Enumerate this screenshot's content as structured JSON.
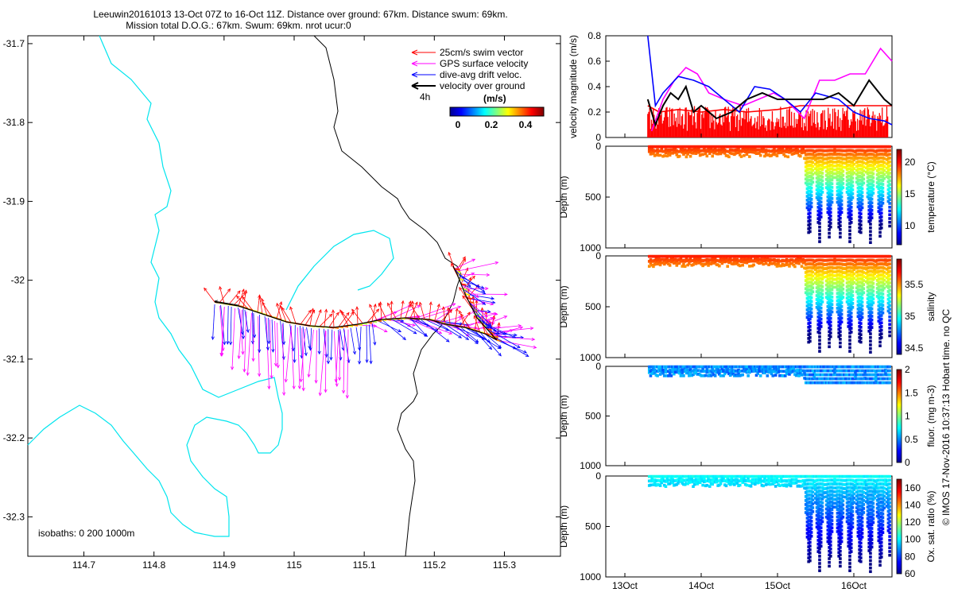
{
  "header": {
    "title_line1": "Leeuwin20161013 13-Oct 07Z to 16-Oct 11Z. Distance over ground: 67km. Distance swum: 69km.",
    "title_line2": "Mission total D.O.G.: 67km. Swum: 69km. nrot ucur:0"
  },
  "credit": "© IMOS 17-Nov-2016 10:37:13 Hobart time. no QC",
  "map": {
    "x_ticks": [
      "114.7",
      "114.8",
      "114.9",
      "115",
      "115.1",
      "115.2",
      "115.3"
    ],
    "y_ticks": [
      "-31.7",
      "-31.8",
      "-31.9",
      "-32",
      "-32.1",
      "-32.2",
      "-32.3"
    ],
    "xlim": [
      114.62,
      115.38
    ],
    "ylim": [
      -32.35,
      -31.69
    ],
    "legend": [
      {
        "label": "25cm/s swim vector",
        "color": "#ff0000"
      },
      {
        "label": "GPS surface velocity",
        "color": "#ff00ff"
      },
      {
        "label": "dive-avg drift veloc.",
        "color": "#0000ff"
      },
      {
        "label": "velocity over ground",
        "color": "#000000"
      }
    ],
    "scale_label": "4h",
    "colorbar_title": "(m/s)",
    "colorbar_ticks": [
      "0",
      "0.2",
      "0.4"
    ],
    "isobath_label": "isobaths: 0   200  1000m",
    "colors": {
      "isobath_200": "#00e5ee",
      "isobath_1000": "#000000"
    }
  },
  "chart_data": [
    {
      "type": "line",
      "ylabel": "velocity magnitude (m/s)",
      "ylim": [
        0,
        0.8
      ],
      "y_ticks": [
        "0",
        "0.2",
        "0.4",
        "0.6",
        "0.8"
      ],
      "xlim": [
        12.75,
        16.5
      ],
      "series": [
        {
          "color": "#ff0000",
          "x": [
            13.3,
            13.45,
            13.7,
            14.0,
            14.3,
            14.6,
            15.0,
            15.3,
            15.6,
            16.0,
            16.3,
            16.5
          ],
          "y": [
            0.25,
            0.2,
            0.22,
            0.2,
            0.22,
            0.2,
            0.22,
            0.25,
            0.25,
            0.25,
            0.25,
            0.25
          ]
        },
        {
          "color": "#ff00ff",
          "x": [
            13.35,
            13.5,
            13.65,
            13.8,
            13.95,
            14.1,
            14.3,
            14.55,
            14.75,
            14.95,
            15.1,
            15.35,
            15.55,
            15.75,
            15.95,
            16.15,
            16.35,
            16.5
          ],
          "y": [
            0.05,
            0.3,
            0.45,
            0.55,
            0.5,
            0.35,
            0.3,
            0.25,
            0.3,
            0.35,
            0.3,
            0.15,
            0.45,
            0.45,
            0.5,
            0.5,
            0.7,
            0.6
          ]
        },
        {
          "color": "#0000ff",
          "x": [
            13.3,
            13.4,
            13.5,
            13.7,
            13.9,
            14.1,
            14.3,
            14.5,
            14.7,
            14.9,
            15.1,
            15.3,
            15.5,
            15.8,
            16.0,
            16.2,
            16.4,
            16.5
          ],
          "y": [
            0.8,
            0.25,
            0.35,
            0.48,
            0.45,
            0.4,
            0.3,
            0.2,
            0.4,
            0.38,
            0.3,
            0.2,
            0.35,
            0.3,
            0.2,
            0.15,
            0.13,
            0.1
          ]
        },
        {
          "color": "#000000",
          "x": [
            13.3,
            13.4,
            13.5,
            13.6,
            13.7,
            13.8,
            13.9,
            14.0,
            14.2,
            14.4,
            14.6,
            14.8,
            15.0,
            15.2,
            15.4,
            15.6,
            15.8,
            16.0,
            16.2,
            16.4,
            16.5
          ],
          "y": [
            0.3,
            0.1,
            0.25,
            0.35,
            0.3,
            0.4,
            0.2,
            0.25,
            0.15,
            0.2,
            0.3,
            0.35,
            0.3,
            0.3,
            0.3,
            0.3,
            0.35,
            0.25,
            0.45,
            0.3,
            0.25
          ]
        }
      ]
    },
    {
      "type": "scatter",
      "name_axis": "temperature (°C)",
      "ylabel": "Depth (m)",
      "y_ticks": [
        "0",
        "500",
        "1000"
      ],
      "ylim": [
        0,
        1000
      ],
      "colorbar_ticks": [
        "10",
        "15",
        "20"
      ],
      "clim": [
        7,
        22
      ]
    },
    {
      "type": "scatter",
      "name_axis": "salinity",
      "ylabel": "Depth (m)",
      "y_ticks": [
        "0",
        "500",
        "1000"
      ],
      "ylim": [
        0,
        1000
      ],
      "colorbar_ticks": [
        "34.5",
        "35",
        "35.5"
      ],
      "clim": [
        34.4,
        35.9
      ]
    },
    {
      "type": "scatter",
      "name_axis": "fluor. (mg m-3)",
      "ylabel": "Depth (m)",
      "y_ticks": [
        "0",
        "500",
        "1000"
      ],
      "ylim": [
        0,
        1000
      ],
      "colorbar_ticks": [
        "0",
        "0.5",
        "1",
        "1.5",
        "2"
      ],
      "clim": [
        0,
        2
      ]
    },
    {
      "type": "scatter",
      "name_axis": "Ox. sat. ratio (%)",
      "ylabel": "Depth (m)",
      "y_ticks": [
        "0",
        "500",
        "1000"
      ],
      "ylim": [
        0,
        1000
      ],
      "colorbar_ticks": [
        "60",
        "80",
        "100",
        "120",
        "140",
        "160"
      ],
      "clim": [
        60,
        170
      ]
    }
  ],
  "time_axis": {
    "ticks": [
      {
        "label": "13Oct",
        "value": 13.0
      },
      {
        "label": "14Oct",
        "value": 14.0
      },
      {
        "label": "15Oct",
        "value": 15.0
      },
      {
        "label": "16Oct",
        "value": 16.0
      }
    ]
  }
}
